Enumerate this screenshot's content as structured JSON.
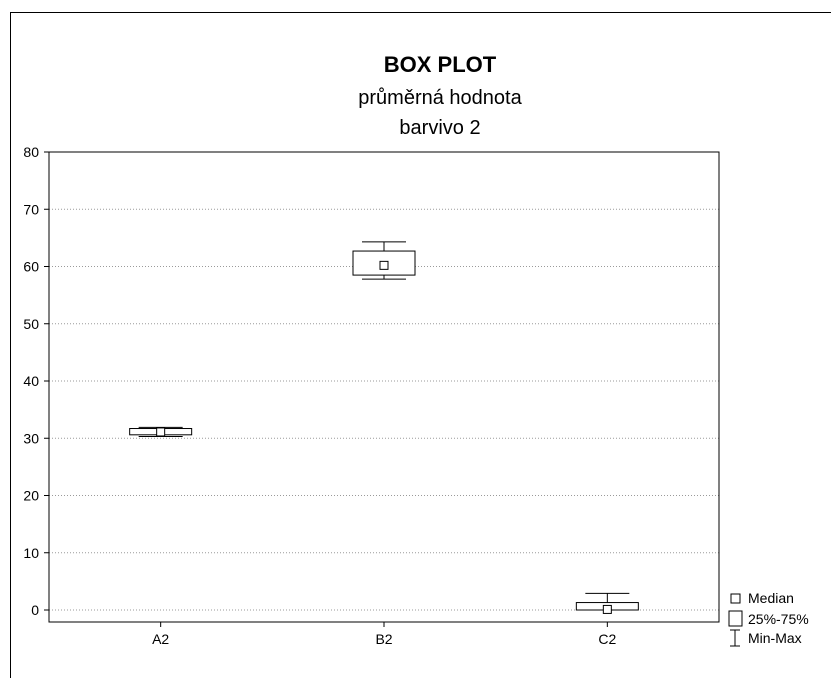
{
  "chart_data": {
    "type": "boxplot",
    "title": "BOX PLOT",
    "subtitle_lines": [
      "průměrná hodnota",
      "barvivo 2"
    ],
    "xlabel": "",
    "ylabel": "",
    "ylim": [
      -2,
      80
    ],
    "yticks": [
      0,
      10,
      20,
      30,
      40,
      50,
      60,
      70,
      80
    ],
    "grid": "horizontal dotted",
    "legend_position": "bottom-right outside",
    "categories": [
      "A2",
      "B2",
      "C2"
    ],
    "boxes": [
      {
        "category": "A2",
        "min": 30.3,
        "q1": 30.6,
        "median": 31.1,
        "q3": 31.7,
        "max": 31.9
      },
      {
        "category": "B2",
        "min": 57.8,
        "q1": 58.5,
        "median": 60.2,
        "q3": 62.7,
        "max": 64.3
      },
      {
        "category": "C2",
        "min": 0.0,
        "q1": 0.0,
        "median": 0.1,
        "q3": 1.3,
        "max": 2.9
      }
    ],
    "legend": {
      "median": "Median",
      "box": "25%-75%",
      "whisker": "Min-Max"
    }
  }
}
